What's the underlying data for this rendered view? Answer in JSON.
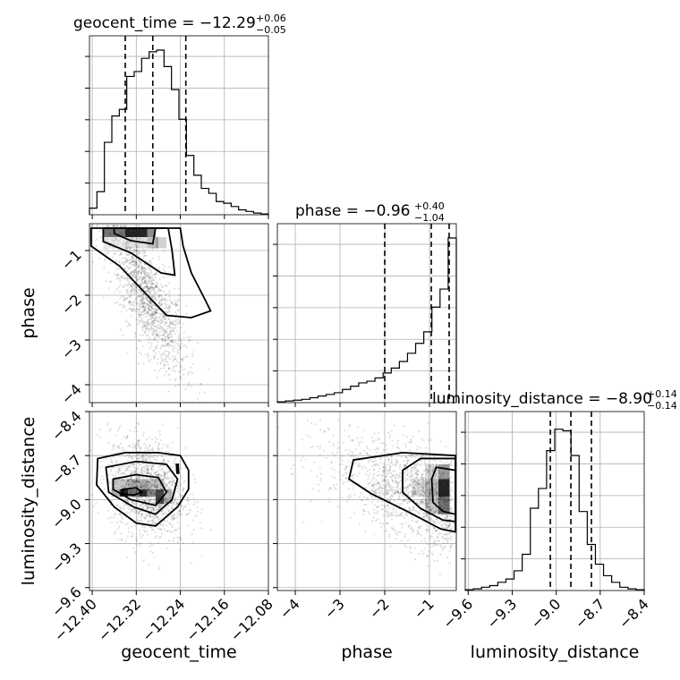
{
  "chart_data": {
    "type": "corner",
    "parameters": [
      "geocent_time",
      "phase",
      "luminosity_distance"
    ],
    "titles": {
      "geocent_time": {
        "label": "geocent_time = −12.29",
        "plus": "+0.06",
        "minus": "−0.05"
      },
      "phase": {
        "label": "phase = −0.96",
        "plus": "+0.40",
        "minus": "−1.04"
      },
      "luminosity_distance": {
        "label": "luminosity_distance = −8.90",
        "plus": "+0.14",
        "minus": "−0.14"
      }
    },
    "ranges": {
      "geocent_time": [
        -12.405,
        -12.08
      ],
      "phase": [
        -4.4,
        -0.4
      ],
      "luminosity_distance": [
        -9.62,
        -8.4
      ]
    },
    "ticks": {
      "geocent_time": [
        -12.4,
        -12.32,
        -12.24,
        -12.16,
        -12.08
      ],
      "phase": [
        -4,
        -3,
        -2,
        -1
      ],
      "luminosity_distance": [
        -9.6,
        -9.3,
        -9.0,
        -8.7,
        -8.4
      ]
    },
    "tick_labels": {
      "geocent_time": [
        "−12.40",
        "−12.32",
        "−12.24",
        "−12.16",
        "−12.08"
      ],
      "phase": [
        "−4",
        "−3",
        "−2",
        "−1"
      ],
      "luminosity_distance": [
        "−9.6",
        "−9.3",
        "−9.0",
        "−8.7",
        "−8.4"
      ]
    },
    "quantiles": {
      "geocent_time": [
        -12.34,
        -12.29,
        -12.23
      ],
      "phase": [
        -2.0,
        -0.96,
        -0.56
      ],
      "luminosity_distance": [
        -9.04,
        -8.9,
        -8.76
      ]
    },
    "histograms": {
      "geocent_time": [
        0.04,
        0.14,
        0.44,
        0.6,
        0.64,
        0.84,
        0.87,
        0.95,
        0.99,
        1.0,
        0.9,
        0.76,
        0.58,
        0.36,
        0.24,
        0.16,
        0.13,
        0.08,
        0.07,
        0.05,
        0.03,
        0.02,
        0.01,
        0.005
      ],
      "phase": [
        0.005,
        0.01,
        0.015,
        0.02,
        0.03,
        0.04,
        0.05,
        0.06,
        0.08,
        0.1,
        0.12,
        0.13,
        0.15,
        0.18,
        0.21,
        0.25,
        0.3,
        0.36,
        0.43,
        0.58,
        0.69,
        1.0
      ],
      "luminosity_distance": [
        0.005,
        0.01,
        0.02,
        0.03,
        0.05,
        0.07,
        0.12,
        0.22,
        0.5,
        0.62,
        0.85,
        0.98,
        0.97,
        0.82,
        0.48,
        0.28,
        0.16,
        0.09,
        0.05,
        0.02,
        0.01,
        0.005
      ]
    },
    "grid": true,
    "legend": "none"
  }
}
